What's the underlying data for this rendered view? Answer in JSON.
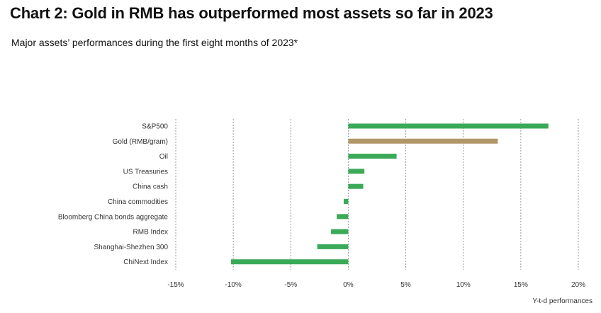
{
  "header": {
    "title": "Chart 2: Gold in RMB has outperformed most assets so far in 2023",
    "subtitle": "Major assets’ performances during the first eight months of 2023*"
  },
  "colors": {
    "green": "#3aaa59",
    "gold": "#b0976a",
    "grid": "#9a9a9a",
    "text": "#333333"
  },
  "chart_data": {
    "type": "bar",
    "orientation": "horizontal",
    "title": "Chart 2: Gold in RMB has outperformed most assets so far in 2023",
    "subtitle": "Major assets’ performances during the first eight months of 2023*",
    "xlabel": "Y-t-d performances",
    "ylabel": "",
    "xlim": [
      -15,
      20
    ],
    "xticks": [
      -15,
      -10,
      -5,
      0,
      5,
      10,
      15,
      20
    ],
    "xtick_labels": [
      "-15%",
      "-10%",
      "-5%",
      "0%",
      "5%",
      "10%",
      "15%",
      "20%"
    ],
    "grid": "vertical dashed",
    "categories": [
      "S&P500",
      "Gold (RMB/gram)",
      "Oil",
      "US Treasuries",
      "China cash",
      "China commodities",
      "Bloomberg China bonds aggregate",
      "RMB Index",
      "Shanghai-Shezhen 300",
      "ChiNext Index"
    ],
    "values": [
      17.4,
      13.0,
      4.2,
      1.4,
      1.3,
      -0.4,
      -1.0,
      -1.5,
      -2.7,
      -10.2
    ],
    "highlight": "Gold (RMB/gram)"
  }
}
